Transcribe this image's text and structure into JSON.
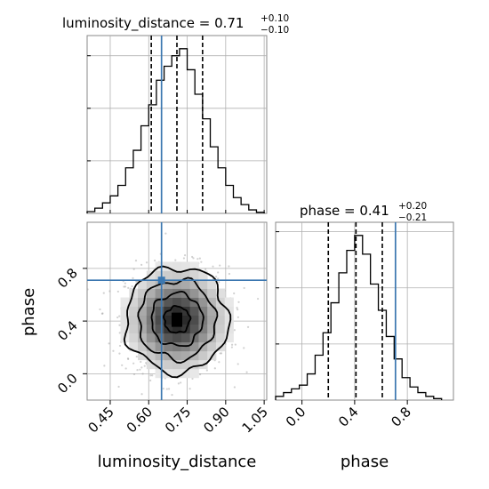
{
  "chart_data": [
    {
      "panel": "histogram-luminosity_distance",
      "type": "histogram",
      "title_param": "luminosity_distance",
      "title_value": "0.71",
      "title_upper": "+0.10",
      "title_lower": "−0.10",
      "xlim": [
        0.36,
        1.06
      ],
      "bin_edges": [
        0.36,
        0.39,
        0.42,
        0.45,
        0.48,
        0.51,
        0.54,
        0.57,
        0.6,
        0.63,
        0.66,
        0.69,
        0.72,
        0.75,
        0.78,
        0.81,
        0.84,
        0.87,
        0.9,
        0.93,
        0.96,
        0.99,
        1.02,
        1.05
      ],
      "counts": [
        0.5,
        1.5,
        3,
        5,
        8,
        13,
        18,
        25,
        31,
        38,
        42,
        45,
        47,
        41,
        34,
        27,
        19,
        13,
        8,
        4.5,
        2.5,
        1,
        0.3
      ],
      "quantiles": [
        0.61,
        0.71,
        0.81
      ],
      "truth": 0.65
    },
    {
      "panel": "scatter-luminosity_distance-vs-phase",
      "type": "scatter",
      "xlabel": "luminosity_distance",
      "ylabel": "phase",
      "xlim": [
        0.36,
        1.06
      ],
      "ylim": [
        -0.2,
        1.15
      ],
      "xticks": [
        "0.45",
        "0.60",
        "0.75",
        "0.90",
        "1.05"
      ],
      "xtick_values": [
        0.45,
        0.6,
        0.75,
        0.9,
        1.05
      ],
      "yticks": [
        "0.0",
        "0.4",
        "0.8"
      ],
      "ytick_values": [
        0.0,
        0.4,
        0.8
      ],
      "center": [
        0.71,
        0.41
      ],
      "spread": [
        0.1,
        0.2
      ],
      "contour_levels": [
        0.5,
        1.0,
        1.5,
        2.0
      ],
      "truth": [
        0.65,
        0.71
      ]
    },
    {
      "panel": "histogram-phase",
      "type": "histogram",
      "title_param": "phase",
      "title_value": "0.41",
      "title_upper": "+0.20",
      "title_lower": "−0.21",
      "xlabel": "phase",
      "xlim": [
        -0.2,
        1.15
      ],
      "xticks": [
        "0.0",
        "0.4",
        "0.8"
      ],
      "xtick_values": [
        0.0,
        0.4,
        0.8
      ],
      "bin_edges": [
        -0.2,
        -0.14,
        -0.08,
        -0.02,
        0.04,
        0.1,
        0.16,
        0.22,
        0.28,
        0.34,
        0.4,
        0.46,
        0.52,
        0.58,
        0.64,
        0.7,
        0.76,
        0.82,
        0.88,
        0.94,
        1.0,
        1.06
      ],
      "counts": [
        1,
        2,
        3,
        4,
        7,
        12,
        18,
        26,
        34,
        40,
        44,
        39,
        31,
        24,
        17,
        11,
        6,
        3.5,
        2,
        1,
        0.4
      ],
      "quantiles": [
        0.2,
        0.41,
        0.61
      ],
      "truth": 0.71
    }
  ]
}
